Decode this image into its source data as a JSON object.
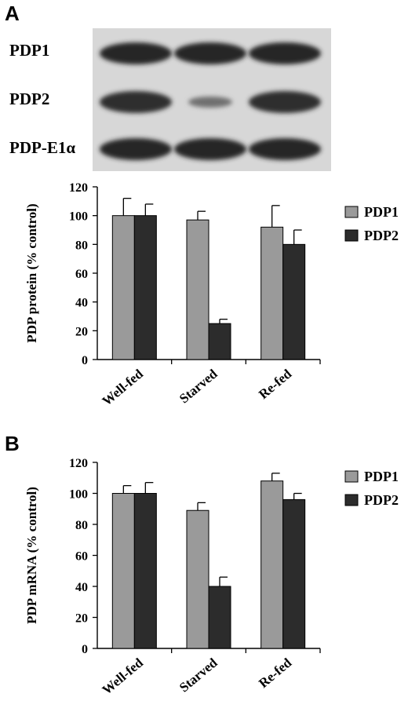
{
  "panels": {
    "a": "A",
    "b": "B"
  },
  "blot": {
    "labels": [
      "PDP1",
      "PDP2",
      "PDP-E1α"
    ],
    "lanes": 3,
    "band_intensity": [
      [
        1.0,
        1.0,
        1.0
      ],
      [
        0.95,
        0.35,
        0.95
      ],
      [
        1.0,
        1.0,
        1.0
      ]
    ]
  },
  "colors": {
    "PDP1": "#9a9a9a",
    "PDP2": "#2c2c2c",
    "error": "#000000"
  },
  "chart_data": [
    {
      "type": "bar",
      "categories": [
        "Well-fed",
        "Starved",
        "Re-fed"
      ],
      "ylabel": "PDP protein (% control)",
      "ylim": [
        0,
        120
      ],
      "yticks": [
        0,
        20,
        40,
        60,
        80,
        100,
        120
      ],
      "legend_position": "right",
      "series": [
        {
          "name": "PDP1",
          "values": [
            100,
            97,
            92
          ],
          "errors": [
            12,
            6,
            15
          ]
        },
        {
          "name": "PDP2",
          "values": [
            100,
            25,
            80
          ],
          "errors": [
            8,
            3,
            10
          ]
        }
      ]
    },
    {
      "type": "bar",
      "categories": [
        "Well-fed",
        "Starved",
        "Re-fed"
      ],
      "ylabel": "PDP mRNA (% control)",
      "ylim": [
        0,
        120
      ],
      "yticks": [
        0,
        20,
        40,
        60,
        80,
        100,
        120
      ],
      "legend_position": "right",
      "series": [
        {
          "name": "PDP1",
          "values": [
            100,
            89,
            108
          ],
          "errors": [
            5,
            5,
            5
          ]
        },
        {
          "name": "PDP2",
          "values": [
            100,
            40,
            96
          ],
          "errors": [
            7,
            6,
            4
          ]
        }
      ]
    }
  ]
}
